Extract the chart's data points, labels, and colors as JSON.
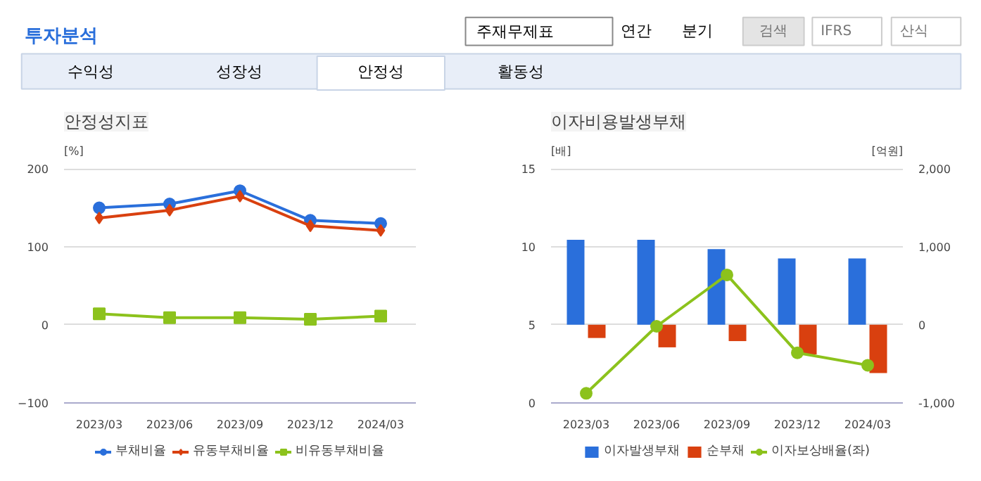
{
  "chart_data": [
    {
      "type": "other",
      "title": "투자분석",
      "annotations": [
        "주재무제표",
        "연간",
        "분기",
        "검색",
        "IFRS",
        "산식",
        "수익성",
        "성장성",
        "안정성",
        "활동성"
      ]
    },
    {
      "type": "line",
      "title": "안정성지표",
      "ylabel": "[%]",
      "categories": [
        "2023/03",
        "2023/06",
        "2023/09",
        "2023/12",
        "2024/03"
      ],
      "series": [
        {
          "name": "부채비율",
          "color": "#2a6fdb",
          "marker": "circle",
          "values": [
            150,
            155,
            172,
            134,
            130
          ]
        },
        {
          "name": "유동부채비율",
          "color": "#d9400f",
          "marker": "diamond",
          "values": [
            137,
            147,
            165,
            127,
            121
          ]
        },
        {
          "name": "비유동부채비율",
          "color": "#8cc21c",
          "marker": "square",
          "values": [
            14,
            9,
            9,
            7,
            11
          ]
        }
      ],
      "ylim": [
        -100,
        200
      ],
      "yticks": [
        -100,
        0,
        100,
        200
      ],
      "grid": "y",
      "legend": "bottom"
    },
    {
      "type": "bar",
      "title": "이자비용발생부채",
      "ylabel": "[배]",
      "y2label": "[억원]",
      "categories": [
        "2023/03",
        "2023/06",
        "2023/09",
        "2023/12",
        "2024/03"
      ],
      "series": [
        {
          "name": "이자발생부채",
          "color": "#2a6fdb",
          "axis": "y2",
          "values": [
            1090,
            1090,
            970,
            850,
            850
          ]
        },
        {
          "name": "순부채",
          "color": "#d9400f",
          "axis": "y2",
          "values": [
            -170,
            -290,
            -210,
            -380,
            -620
          ]
        },
        {
          "name": "이자보상배율(좌)",
          "type": "line",
          "marker": "circle",
          "color": "#8cc21c",
          "values": [
            0.6,
            4.9,
            8.2,
            3.2,
            2.4
          ]
        }
      ],
      "ylim": [
        0,
        15
      ],
      "yticks": [
        0,
        5,
        10,
        15
      ],
      "y2lim": [
        -1000,
        2000
      ],
      "y2ticks": [
        {
          "value": -1000,
          "label": "-1,000"
        },
        0,
        {
          "value": 1000,
          "label": "1,000"
        },
        {
          "value": 2000,
          "label": "2,000"
        }
      ],
      "grid": "y",
      "legend": "bottom"
    }
  ]
}
